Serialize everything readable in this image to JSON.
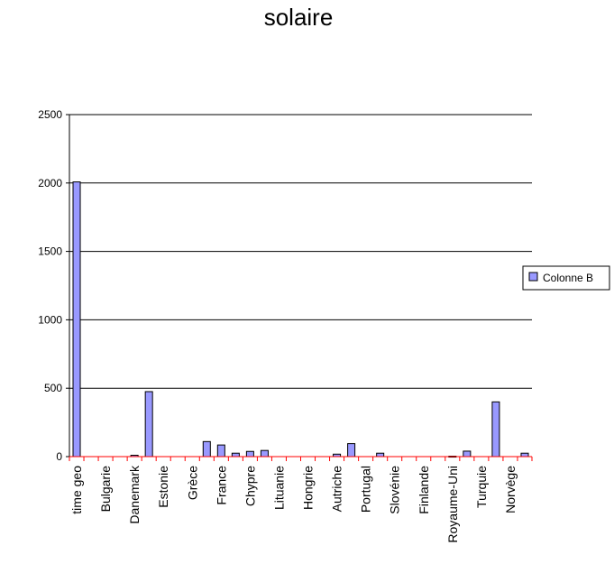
{
  "chart_data": {
    "type": "bar",
    "title": "solaire",
    "xlabel": "",
    "ylabel": "",
    "ylim": [
      0,
      2500
    ],
    "yticks": [
      0,
      500,
      1000,
      1500,
      2000,
      2500
    ],
    "grid": "horizontal",
    "legend_position": "right",
    "colors": {
      "bar_fill": "#9999ff",
      "bar_stroke": "#000000",
      "axis_tick_marks": "#ff0000",
      "gridline": "#000000"
    },
    "categories": [
      "time geo",
      "",
      "Bulgarie",
      "",
      "Danemark",
      "",
      "Estonie",
      "",
      "Grèce",
      "",
      "France",
      "",
      "Chypre",
      "",
      "Lituanie",
      "",
      "Hongrie",
      "",
      "Autriche",
      "",
      "Portugal",
      "",
      "Slovénie",
      "",
      "Finlande",
      "",
      "Royaume-Uni",
      "",
      "Turquie",
      "",
      "Norvège",
      ""
    ],
    "series": [
      {
        "name": "Colonne B",
        "values": [
          2008,
          0,
          0,
          0,
          10,
          475,
          0,
          0,
          0,
          110,
          85,
          25,
          38,
          45,
          0,
          0,
          0,
          0,
          18,
          95,
          0,
          25,
          0,
          0,
          0,
          0,
          3,
          40,
          0,
          400,
          0,
          25
        ]
      }
    ]
  }
}
